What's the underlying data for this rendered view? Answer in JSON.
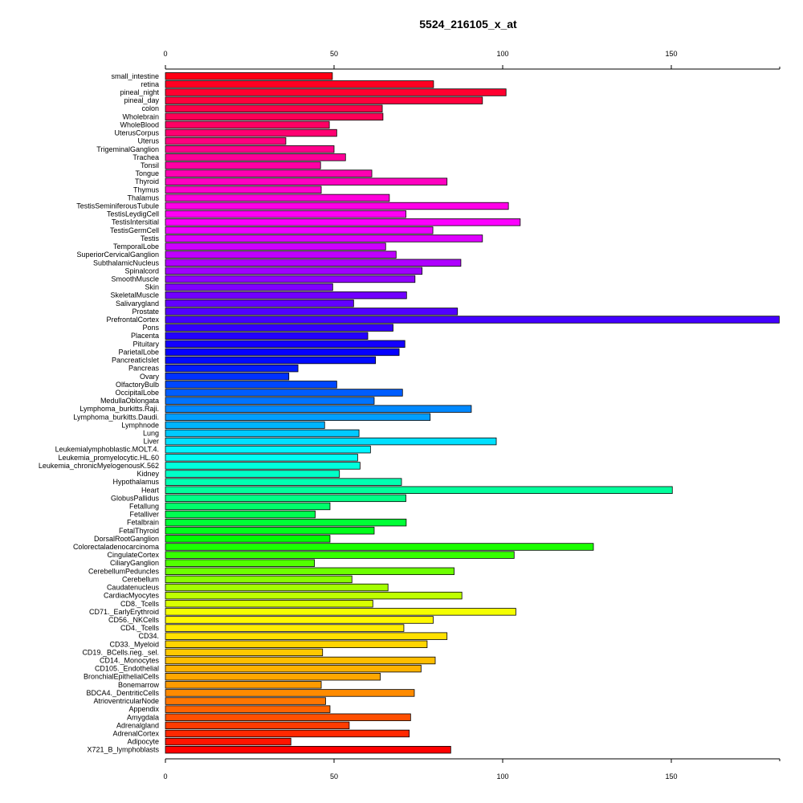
{
  "chart_data": {
    "type": "bar",
    "orientation": "horizontal",
    "title": "5524_216105_x_at",
    "xlabel": "",
    "ylabel": "",
    "xlim": [
      0,
      180
    ],
    "ticks": [
      0,
      50,
      100,
      150
    ],
    "tick_labels": [
      "0",
      "50",
      "100",
      "150"
    ],
    "grid": false,
    "categories": [
      "small_intestine",
      "retina",
      "pineal_night",
      "pineal_day",
      "colon",
      "Wholebrain",
      "WholeBlood",
      "UterusCorpus",
      "Uterus",
      "TrigeminalGanglion",
      "Trachea",
      "Tonsil",
      "Tongue",
      "Thyroid",
      "Thymus",
      "Thalamus",
      "TestisSeminiferousTubule",
      "TestisLeydigCell",
      "TestisIntersitial",
      "TestisGermCell",
      "Testis",
      "TemporalLobe",
      "SuperiorCervicalGanglion",
      "SubthalamicNucleus",
      "Spinalcord",
      "SmoothMuscle",
      "Skin",
      "SkeletalMuscle",
      "Salivarygland",
      "Prostate",
      "PrefrontalCortex",
      "Pons",
      "Placenta",
      "Pituitary",
      "ParietalLobe",
      "PancreaticIslet",
      "Pancreas",
      "Ovary",
      "OlfactoryBulb",
      "OccipitalLobe",
      "MedullaOblongata",
      "Lymphoma_burkitts.Raji.",
      "Lymphoma_burkitts.Daudi.",
      "Lymphnode",
      "Lung",
      "Liver",
      "Leukemialymphoblastic.MOLT.4.",
      "Leukemia_promyelocytic.HL.60",
      "Leukemia_chronicMyelogenousK.562",
      "Kidney",
      "Hypothalamus",
      "Heart",
      "GlobusPallidus",
      "Fetallung",
      "Fetalliver",
      "Fetalbrain",
      "FetalThyroid",
      "DorsalRootGanglion",
      "Colorectaladenocarcinoma",
      "CingulateCortex",
      "CiliaryGanglion",
      "CerebellumPeduncles",
      "Cerebellum",
      "Caudatenucleus",
      "CardiacMyocytes",
      "CD8._Tcells",
      "CD71._EarlyErythroid",
      "CD56._NKCells",
      "CD4._Tcells",
      "CD34.",
      "CD33._Myeloid",
      "CD19._BCells.neg._sel.",
      "CD14._Monocytes",
      "CD105._Endothelial",
      "BronchialEpithelialCells",
      "Bonemarrow",
      "BDCA4._DentriticCells",
      "AtrioventricularNode",
      "Appendix",
      "Amygdala",
      "Adrenalgland",
      "AdrenalCortex",
      "Adipocyte",
      "X721_B_lymphoblasts"
    ],
    "values": [
      49.5,
      79.5,
      101,
      94,
      64.3,
      64.5,
      48.6,
      50.8,
      35.7,
      50,
      53.4,
      46,
      61.2,
      83.5,
      46.2,
      66.4,
      101.7,
      71.3,
      105.2,
      79.3,
      94,
      65.3,
      68.4,
      87.6,
      76.1,
      74,
      49.6,
      71.5,
      55.8,
      86.6,
      182,
      67.5,
      60,
      71,
      69.3,
      62.3,
      39.3,
      36.6,
      50.8,
      70.3,
      61.9,
      90.7,
      78.5,
      47.2,
      57.4,
      98.1,
      60.8,
      57,
      57.7,
      51.6,
      70,
      150.3,
      71.3,
      48.8,
      44.4,
      71.4,
      61.9,
      48.8,
      126.9,
      103.4,
      44.2,
      85.6,
      55.3,
      66,
      87.9,
      61.5,
      103.9,
      79.4,
      70.7,
      83.5,
      77.6,
      46.6,
      80,
      75.8,
      63.7,
      46.2,
      73.8,
      47.5,
      48.8,
      72.7,
      54.5,
      72.3,
      37.2,
      84.6
    ]
  }
}
